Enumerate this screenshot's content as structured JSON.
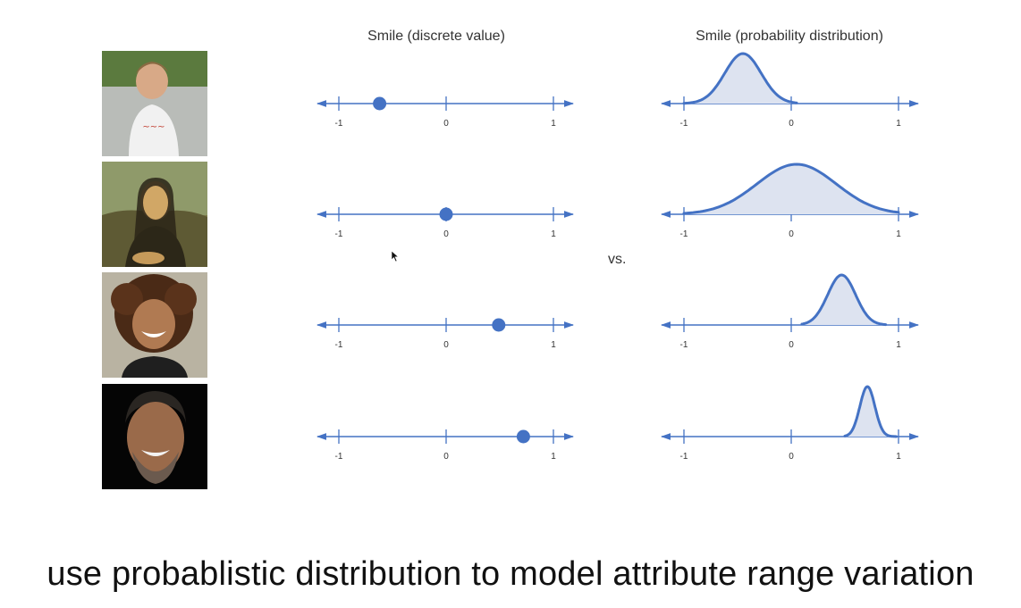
{
  "titles": {
    "discrete": "Smile (discrete value)",
    "distribution": "Smile (probability distribution)"
  },
  "vs_label": "vs.",
  "caption": "use probablistic distribution to model attribute range variation",
  "colors": {
    "accent": "#4472c4",
    "fill": "#dde3f0"
  },
  "axis": {
    "ticks": [
      -1,
      0,
      1
    ],
    "tick_labels": [
      "-1",
      "0",
      "1"
    ]
  },
  "rows": [
    {
      "photo": "boy-frowning",
      "discrete_value": -0.62,
      "dist_mean": -0.45,
      "dist_sd": 0.17,
      "dist_range": [
        -1,
        0.05
      ]
    },
    {
      "photo": "mona-lisa",
      "discrete_value": 0.0,
      "dist_mean": 0.05,
      "dist_sd": 0.37,
      "dist_range": [
        -1,
        1
      ]
    },
    {
      "photo": "girl-smiling",
      "discrete_value": 0.49,
      "dist_mean": 0.47,
      "dist_sd": 0.13,
      "dist_range": [
        0.1,
        0.88
      ]
    },
    {
      "photo": "man-laughing",
      "discrete_value": 0.72,
      "dist_mean": 0.71,
      "dist_sd": 0.07,
      "dist_range": [
        0.5,
        0.98
      ]
    }
  ]
}
